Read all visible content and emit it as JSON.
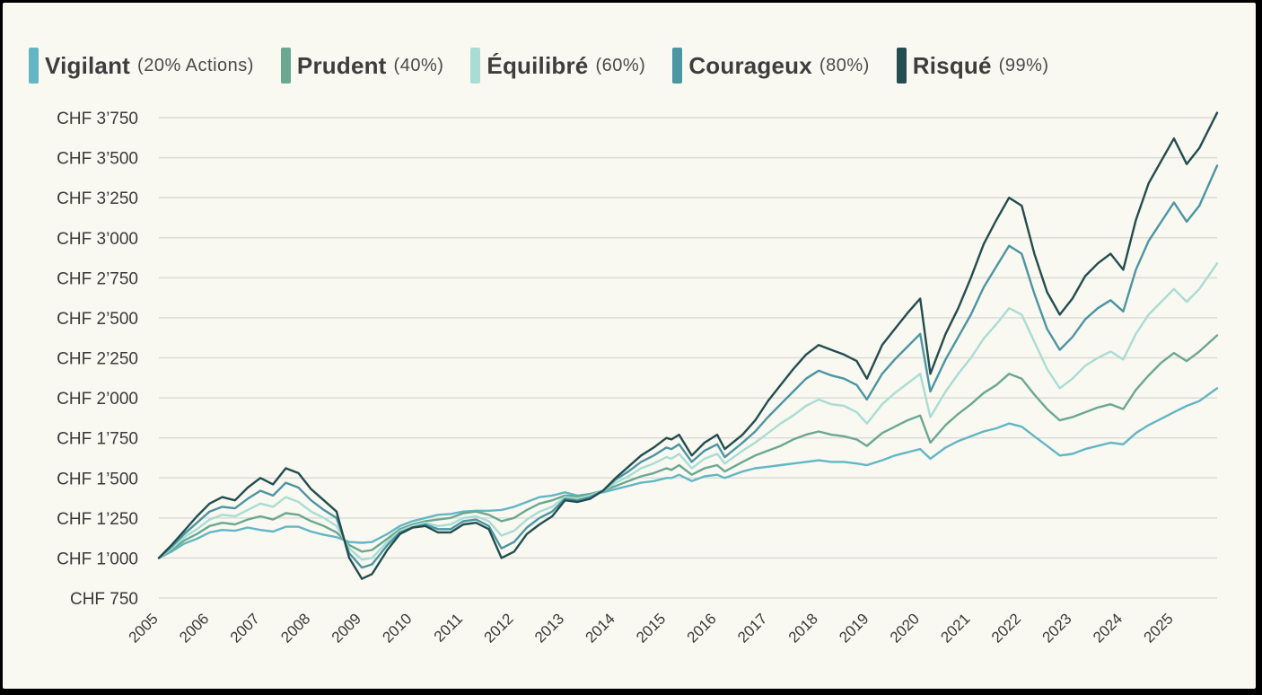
{
  "chart_data": {
    "type": "line",
    "title": "",
    "xlabel": "",
    "ylabel": "",
    "ylim": [
      750,
      3750
    ],
    "xlim": [
      2005.0,
      2025.85
    ],
    "grid": true,
    "legend_position": "top-left",
    "y_ticks": [
      {
        "value": 750,
        "label": "CHF 750"
      },
      {
        "value": 1000,
        "label": "CHF 1’000"
      },
      {
        "value": 1250,
        "label": "CHF 1’250"
      },
      {
        "value": 1500,
        "label": "CHF 1’500"
      },
      {
        "value": 1750,
        "label": "CHF 1’750"
      },
      {
        "value": 2000,
        "label": "CHF 2’000"
      },
      {
        "value": 2250,
        "label": "CHF 2’250"
      },
      {
        "value": 2500,
        "label": "CHF 2’500"
      },
      {
        "value": 2750,
        "label": "CHF 2’750"
      },
      {
        "value": 3000,
        "label": "CHF 3’000"
      },
      {
        "value": 3250,
        "label": "CHF 3’250"
      },
      {
        "value": 3500,
        "label": "CHF 3’500"
      },
      {
        "value": 3750,
        "label": "CHF 3’750"
      }
    ],
    "x_ticks": [
      "2005",
      "2006",
      "2007",
      "2008",
      "2009",
      "2010",
      "2011",
      "2012",
      "2013",
      "2014",
      "2015",
      "2016",
      "2017",
      "2018",
      "2019",
      "2020",
      "2021",
      "2022",
      "2023",
      "2024",
      "2025"
    ],
    "x": [
      2005.0,
      2005.25,
      2005.5,
      2005.75,
      2006.0,
      2006.25,
      2006.5,
      2006.75,
      2007.0,
      2007.25,
      2007.5,
      2007.75,
      2008.0,
      2008.25,
      2008.5,
      2008.75,
      2009.0,
      2009.2,
      2009.5,
      2009.75,
      2010.0,
      2010.25,
      2010.5,
      2010.75,
      2011.0,
      2011.25,
      2011.5,
      2011.75,
      2012.0,
      2012.25,
      2012.5,
      2012.75,
      2013.0,
      2013.25,
      2013.5,
      2013.75,
      2014.0,
      2014.25,
      2014.5,
      2014.75,
      2015.0,
      2015.1,
      2015.25,
      2015.5,
      2015.75,
      2016.0,
      2016.15,
      2016.5,
      2016.75,
      2017.0,
      2017.25,
      2017.5,
      2017.75,
      2018.0,
      2018.25,
      2018.5,
      2018.75,
      2018.95,
      2019.25,
      2019.5,
      2019.75,
      2020.0,
      2020.2,
      2020.5,
      2020.75,
      2021.0,
      2021.25,
      2021.5,
      2021.75,
      2022.0,
      2022.25,
      2022.5,
      2022.75,
      2023.0,
      2023.25,
      2023.5,
      2023.75,
      2024.0,
      2024.25,
      2024.5,
      2024.75,
      2025.0,
      2025.25,
      2025.5,
      2025.85
    ],
    "series": [
      {
        "name": "Vigilant",
        "values": [
          1000,
          1040,
          1090,
          1120,
          1160,
          1175,
          1170,
          1190,
          1175,
          1165,
          1195,
          1195,
          1165,
          1145,
          1130,
          1100,
          1095,
          1100,
          1150,
          1200,
          1230,
          1250,
          1270,
          1275,
          1290,
          1295,
          1295,
          1300,
          1320,
          1350,
          1380,
          1390,
          1410,
          1390,
          1400,
          1410,
          1430,
          1450,
          1470,
          1480,
          1500,
          1500,
          1520,
          1480,
          1510,
          1520,
          1500,
          1540,
          1560,
          1570,
          1580,
          1590,
          1600,
          1610,
          1600,
          1600,
          1590,
          1580,
          1610,
          1640,
          1660,
          1680,
          1620,
          1690,
          1730,
          1760,
          1790,
          1810,
          1840,
          1820,
          1760,
          1700,
          1640,
          1650,
          1680,
          1700,
          1720,
          1710,
          1780,
          1830,
          1870,
          1910,
          1950,
          1980,
          2060
        ]
      },
      {
        "name": "Prudent",
        "values": [
          1000,
          1050,
          1110,
          1150,
          1200,
          1220,
          1210,
          1240,
          1260,
          1240,
          1280,
          1270,
          1230,
          1200,
          1160,
          1080,
          1040,
          1050,
          1120,
          1180,
          1210,
          1230,
          1240,
          1250,
          1280,
          1290,
          1270,
          1230,
          1250,
          1300,
          1340,
          1360,
          1390,
          1385,
          1400,
          1420,
          1450,
          1480,
          1510,
          1530,
          1560,
          1550,
          1580,
          1520,
          1560,
          1580,
          1540,
          1600,
          1640,
          1670,
          1700,
          1740,
          1770,
          1790,
          1770,
          1760,
          1740,
          1700,
          1780,
          1820,
          1860,
          1890,
          1720,
          1830,
          1900,
          1960,
          2030,
          2080,
          2150,
          2120,
          2020,
          1930,
          1860,
          1880,
          1910,
          1940,
          1960,
          1930,
          2050,
          2140,
          2220,
          2280,
          2230,
          2290,
          2390
        ]
      },
      {
        "name": "Équilibré",
        "values": [
          1000,
          1060,
          1130,
          1180,
          1240,
          1270,
          1260,
          1300,
          1340,
          1320,
          1380,
          1350,
          1290,
          1250,
          1200,
          1060,
          990,
          1000,
          1100,
          1170,
          1200,
          1220,
          1200,
          1210,
          1250,
          1260,
          1230,
          1140,
          1170,
          1240,
          1290,
          1320,
          1380,
          1370,
          1390,
          1420,
          1470,
          1510,
          1560,
          1590,
          1630,
          1620,
          1650,
          1560,
          1620,
          1650,
          1590,
          1670,
          1720,
          1780,
          1840,
          1890,
          1950,
          1990,
          1960,
          1950,
          1910,
          1840,
          1960,
          2030,
          2090,
          2150,
          1880,
          2040,
          2150,
          2250,
          2370,
          2460,
          2560,
          2520,
          2350,
          2180,
          2060,
          2120,
          2200,
          2250,
          2290,
          2240,
          2400,
          2520,
          2600,
          2680,
          2600,
          2680,
          2840
        ]
      },
      {
        "name": "Courageux",
        "values": [
          1000,
          1070,
          1150,
          1220,
          1290,
          1320,
          1310,
          1370,
          1420,
          1390,
          1470,
          1440,
          1360,
          1300,
          1250,
          1030,
          940,
          960,
          1080,
          1160,
          1190,
          1210,
          1180,
          1180,
          1230,
          1240,
          1200,
          1060,
          1100,
          1190,
          1250,
          1290,
          1370,
          1360,
          1380,
          1420,
          1490,
          1540,
          1600,
          1640,
          1690,
          1680,
          1710,
          1600,
          1670,
          1710,
          1630,
          1720,
          1790,
          1880,
          1960,
          2040,
          2120,
          2170,
          2140,
          2120,
          2080,
          1990,
          2150,
          2240,
          2320,
          2400,
          2040,
          2240,
          2380,
          2520,
          2690,
          2820,
          2950,
          2900,
          2650,
          2430,
          2300,
          2380,
          2490,
          2560,
          2610,
          2540,
          2800,
          2980,
          3100,
          3220,
          3100,
          3200,
          3450
        ]
      },
      {
        "name": "Risqué",
        "values": [
          1000,
          1080,
          1170,
          1260,
          1340,
          1380,
          1360,
          1440,
          1500,
          1460,
          1560,
          1530,
          1430,
          1360,
          1290,
          1000,
          870,
          900,
          1050,
          1150,
          1190,
          1200,
          1160,
          1160,
          1210,
          1220,
          1180,
          1000,
          1040,
          1150,
          1210,
          1260,
          1360,
          1350,
          1370,
          1420,
          1500,
          1570,
          1640,
          1690,
          1750,
          1740,
          1770,
          1640,
          1720,
          1770,
          1680,
          1770,
          1860,
          1980,
          2080,
          2180,
          2270,
          2330,
          2300,
          2270,
          2230,
          2120,
          2330,
          2430,
          2530,
          2620,
          2150,
          2400,
          2560,
          2750,
          2960,
          3110,
          3250,
          3200,
          2900,
          2660,
          2520,
          2620,
          2760,
          2840,
          2900,
          2800,
          3110,
          3340,
          3480,
          3620,
          3460,
          3560,
          3780
        ]
      }
    ]
  },
  "legend": [
    {
      "name": "Vigilant",
      "sub": "(20% Actions)",
      "color": "#63b6c4"
    },
    {
      "name": "Prudent",
      "sub": "(40%)",
      "color": "#6aa891"
    },
    {
      "name": "Équilibré",
      "sub": "(60%)",
      "color": "#a9ddd3"
    },
    {
      "name": "Courageux",
      "sub": "(80%)",
      "color": "#4c95a3"
    },
    {
      "name": "Risqué",
      "sub": "(99%)",
      "color": "#234d4f"
    }
  ]
}
